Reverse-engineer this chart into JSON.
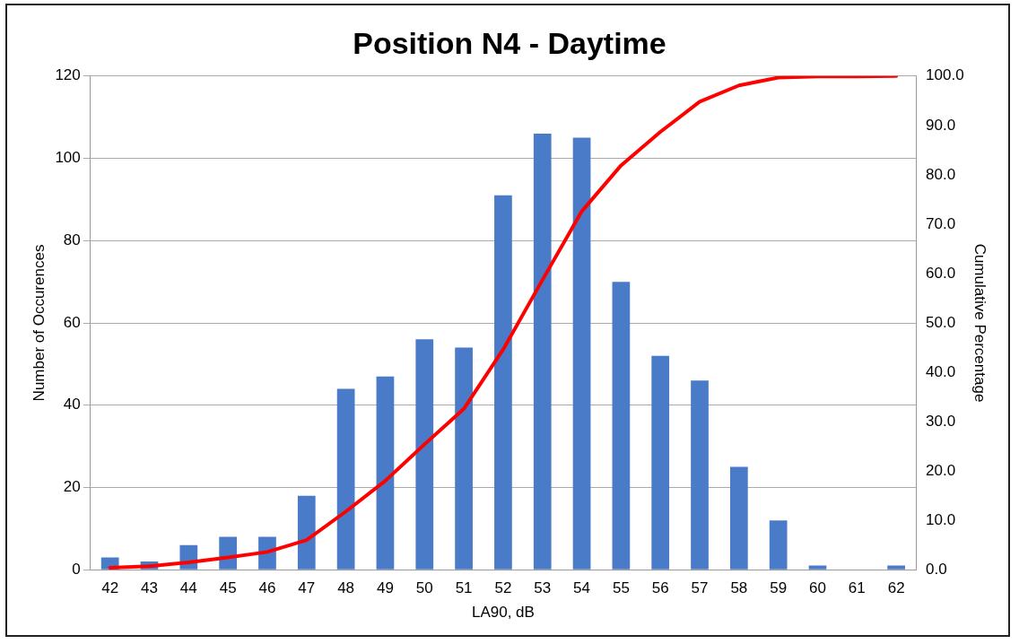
{
  "chart_data": {
    "type": "bar",
    "title": "Position N4 - Daytime",
    "xlabel": "LA90, dB",
    "ylabel": "Number of Occurences",
    "y2label": "Cumulative Percentage",
    "categories": [
      "42",
      "43",
      "44",
      "45",
      "46",
      "47",
      "48",
      "49",
      "50",
      "51",
      "52",
      "53",
      "54",
      "55",
      "56",
      "57",
      "58",
      "59",
      "60",
      "61",
      "62"
    ],
    "series": [
      {
        "color": "#4a7bc8",
        "values": [
          3,
          2,
          6,
          8,
          8,
          18,
          44,
          47,
          56,
          54,
          91,
          106,
          105,
          70,
          52,
          46,
          25,
          12,
          1,
          0,
          1
        ]
      },
      {
        "type": "line",
        "axis": "y2",
        "color": "#ff0000",
        "marker": "none",
        "line_style": "solid",
        "values": [
          0.4,
          0.7,
          1.5,
          2.5,
          3.6,
          6.0,
          11.8,
          18.0,
          25.4,
          32.6,
          44.6,
          58.7,
          72.6,
          81.9,
          88.7,
          94.8,
          98.1,
          99.7,
          99.9,
          99.9,
          100
        ]
      }
    ],
    "ylim": [
      0,
      120
    ],
    "yticks": [
      0,
      20,
      40,
      60,
      80,
      100,
      120
    ],
    "y2lim": [
      0,
      100
    ],
    "y2ticks": [
      {
        "value": 0,
        "label": "0.0"
      },
      {
        "value": 10,
        "label": "10.0"
      },
      {
        "value": 20,
        "label": "20.0"
      },
      {
        "value": 30,
        "label": "30.0"
      },
      {
        "value": 40,
        "label": "40.0"
      },
      {
        "value": 50,
        "label": "50.0"
      },
      {
        "value": 60,
        "label": "60.0"
      },
      {
        "value": 70,
        "label": "70.0"
      },
      {
        "value": 80,
        "label": "80.0"
      },
      {
        "value": 90,
        "label": "90.0"
      },
      {
        "value": 100,
        "label": "100.0"
      }
    ],
    "grid": "y",
    "legend": false
  }
}
